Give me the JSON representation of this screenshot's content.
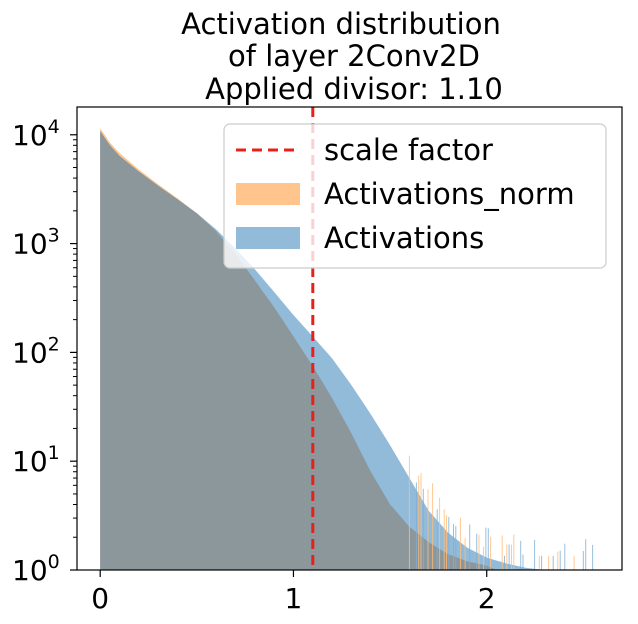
{
  "chart_data": {
    "type": "histogram",
    "title": [
      "Activation distribution",
      "of layer 2Conv2D",
      "Applied divisor: 1.10"
    ],
    "xlabel": "",
    "ylabel": "",
    "xlim": [
      -0.12,
      2.7
    ],
    "ylim": [
      1,
      18000
    ],
    "yscale": "log",
    "x_ticks": [
      {
        "value": 0,
        "label": "0"
      },
      {
        "value": 1,
        "label": "1"
      },
      {
        "value": 2,
        "label": "2"
      }
    ],
    "y_ticks": [
      {
        "value": 1,
        "base": "10",
        "exp": "0"
      },
      {
        "value": 10,
        "base": "10",
        "exp": "1"
      },
      {
        "value": 100,
        "base": "10",
        "exp": "2"
      },
      {
        "value": 1000,
        "base": "10",
        "exp": "3"
      },
      {
        "value": 10000,
        "base": "10",
        "exp": "4"
      }
    ],
    "vline": {
      "x": 1.1,
      "label": "scale factor",
      "color": "#e8201c",
      "style": "dashed"
    },
    "series": [
      {
        "name": "Activations_norm",
        "color": "#ffbb78",
        "alpha": 0.85,
        "points": [
          [
            0,
            11500
          ],
          [
            0.05,
            8500
          ],
          [
            0.1,
            6800
          ],
          [
            0.2,
            4800
          ],
          [
            0.3,
            3500
          ],
          [
            0.4,
            2600
          ],
          [
            0.5,
            1900
          ],
          [
            0.6,
            1300
          ],
          [
            0.7,
            800
          ],
          [
            0.8,
            460
          ],
          [
            0.9,
            260
          ],
          [
            1.0,
            140
          ],
          [
            1.1,
            75
          ],
          [
            1.2,
            38
          ],
          [
            1.3,
            18
          ],
          [
            1.4,
            8
          ],
          [
            1.5,
            4
          ],
          [
            1.6,
            2.5
          ],
          [
            1.7,
            1.8
          ],
          [
            1.8,
            1.4
          ],
          [
            1.9,
            1.2
          ],
          [
            2.0,
            1.1
          ],
          [
            2.05,
            1.0
          ]
        ]
      },
      {
        "name": "Activations",
        "color": "#7fafd4",
        "alpha": 0.85,
        "points": [
          [
            0,
            10800
          ],
          [
            0.05,
            8000
          ],
          [
            0.1,
            6400
          ],
          [
            0.2,
            4600
          ],
          [
            0.3,
            3400
          ],
          [
            0.4,
            2550
          ],
          [
            0.5,
            1900
          ],
          [
            0.6,
            1350
          ],
          [
            0.7,
            900
          ],
          [
            0.8,
            580
          ],
          [
            0.9,
            360
          ],
          [
            1.0,
            220
          ],
          [
            1.1,
            140
          ],
          [
            1.2,
            88
          ],
          [
            1.3,
            50
          ],
          [
            1.4,
            27
          ],
          [
            1.5,
            14
          ],
          [
            1.6,
            7
          ],
          [
            1.7,
            3.5
          ],
          [
            1.8,
            2.2
          ],
          [
            1.9,
            1.6
          ],
          [
            2.0,
            1.3
          ],
          [
            2.1,
            1.15
          ],
          [
            2.2,
            1.05
          ],
          [
            2.3,
            1.0
          ],
          [
            2.55,
            1.0
          ]
        ]
      }
    ],
    "overlap_color": "#8c979c",
    "legend": {
      "position": "top-right",
      "entries": [
        {
          "label": "scale factor",
          "kind": "dashed-line",
          "color": "#e8201c"
        },
        {
          "label": "Activations_norm",
          "kind": "patch",
          "color": "#ffbb78"
        },
        {
          "label": "Activations",
          "kind": "patch",
          "color": "#7fafd4"
        }
      ]
    }
  }
}
